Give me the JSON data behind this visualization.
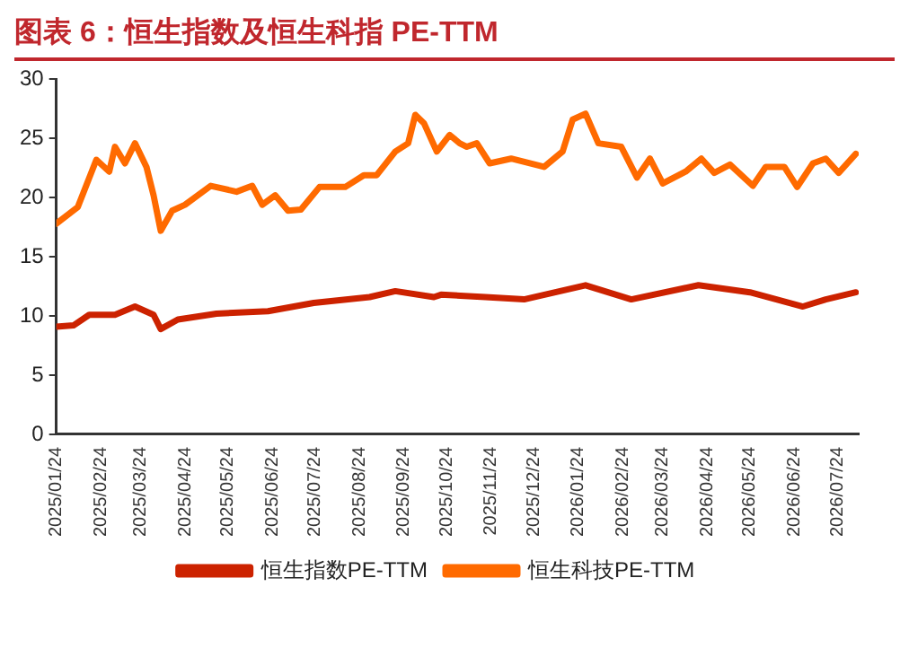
{
  "chart_data": {
    "type": "line",
    "title": "图表 6：恒生指数及恒生科指 PE-TTM",
    "xlim": [
      "2025-01-24",
      "2026-08-08"
    ],
    "xticks": [
      {
        "value": "2025-01-24",
        "label": "2025/01/24"
      },
      {
        "value": "2025-02-24",
        "label": "2025/02/24"
      },
      {
        "value": "2025-03-24",
        "label": "2025/03/24"
      },
      {
        "value": "2025-04-24",
        "label": "2025/04/24"
      },
      {
        "value": "2025-05-24",
        "label": "2025/05/24"
      },
      {
        "value": "2025-06-24",
        "label": "2025/06/24"
      },
      {
        "value": "2025-07-24",
        "label": "2025/07/24"
      },
      {
        "value": "2025-08-24",
        "label": "2025/08/24"
      },
      {
        "value": "2025-09-24",
        "label": "2025/09/24"
      },
      {
        "value": "2025-10-24",
        "label": "2025/10/24"
      },
      {
        "value": "2025-11-24",
        "label": "2025/11/24"
      },
      {
        "value": "2025-12-24",
        "label": "2025/12/24"
      },
      {
        "value": "2026-01-24",
        "label": "2026/01/24"
      },
      {
        "value": "2026-02-24",
        "label": "2026/02/24"
      },
      {
        "value": "2026-03-24",
        "label": "2026/03/24"
      },
      {
        "value": "2026-04-24",
        "label": "2026/04/24"
      },
      {
        "value": "2026-05-24",
        "label": "2026/05/24"
      },
      {
        "value": "2026-06-24",
        "label": "2026/06/24"
      },
      {
        "value": "2026-07-24",
        "label": "2026/07/24"
      }
    ],
    "ylim": [
      0,
      30
    ],
    "yticks": [
      0,
      5,
      10,
      15,
      20,
      25,
      30
    ],
    "grid": false,
    "legend": "bottom",
    "marker": "none",
    "line_style": "solid",
    "series": [
      {
        "name": "恒生指数PE-TTM",
        "color": "#cc2200",
        "x": [
          "2025-01-24",
          "2025-02-05",
          "2025-02-16",
          "2025-03-06",
          "2025-03-20",
          "2025-04-02",
          "2025-04-07",
          "2025-04-19",
          "2025-05-16",
          "2025-06-21",
          "2025-07-23",
          "2025-08-31",
          "2025-09-18",
          "2025-10-15",
          "2025-10-20",
          "2025-11-20",
          "2025-12-17",
          "2026-01-29",
          "2026-03-02",
          "2026-04-18",
          "2026-05-24",
          "2026-06-30",
          "2026-07-16",
          "2026-08-06"
        ],
        "values": [
          9.1,
          9.2,
          10.1,
          10.1,
          10.8,
          10.1,
          8.9,
          9.7,
          10.2,
          10.4,
          11.1,
          11.6,
          12.1,
          11.6,
          11.8,
          11.6,
          11.4,
          12.6,
          11.4,
          12.6,
          12.0,
          10.8,
          11.4,
          12.0
        ]
      },
      {
        "name": "恒生科技PE-TTM",
        "color": "#ff6a00",
        "x": [
          "2025-01-24",
          "2025-02-08",
          "2025-02-21",
          "2025-03-02",
          "2025-03-06",
          "2025-03-13",
          "2025-03-20",
          "2025-03-28",
          "2025-04-02",
          "2025-04-07",
          "2025-04-15",
          "2025-04-24",
          "2025-05-12",
          "2025-05-30",
          "2025-06-10",
          "2025-06-17",
          "2025-06-26",
          "2025-07-05",
          "2025-07-14",
          "2025-07-27",
          "2025-08-14",
          "2025-08-27",
          "2025-09-05",
          "2025-09-18",
          "2025-09-27",
          "2025-10-02",
          "2025-10-08",
          "2025-10-17",
          "2025-10-26",
          "2025-11-02",
          "2025-11-07",
          "2025-11-14",
          "2025-11-23",
          "2025-12-08",
          "2025-12-31",
          "2026-01-13",
          "2026-01-20",
          "2026-01-29",
          "2026-02-07",
          "2026-02-23",
          "2026-03-06",
          "2026-03-15",
          "2026-03-24",
          "2026-04-09",
          "2026-04-20",
          "2026-04-29",
          "2026-05-10",
          "2026-05-26",
          "2026-06-04",
          "2026-06-17",
          "2026-06-26",
          "2026-07-07",
          "2026-07-16",
          "2026-07-25",
          "2026-08-06"
        ],
        "values": [
          17.8,
          19.2,
          23.2,
          22.2,
          24.3,
          22.9,
          24.6,
          22.6,
          20.2,
          17.2,
          18.9,
          19.4,
          21.0,
          20.5,
          21.0,
          19.4,
          20.2,
          18.9,
          19.0,
          20.9,
          20.9,
          21.9,
          21.9,
          23.9,
          24.6,
          27.0,
          26.3,
          23.9,
          25.3,
          24.6,
          24.3,
          24.6,
          22.9,
          23.3,
          22.6,
          23.9,
          26.6,
          27.1,
          24.6,
          24.3,
          21.7,
          23.3,
          21.2,
          22.2,
          23.3,
          22.1,
          22.8,
          21.0,
          22.6,
          22.6,
          20.9,
          22.9,
          23.3,
          22.1,
          23.7
        ]
      }
    ]
  }
}
